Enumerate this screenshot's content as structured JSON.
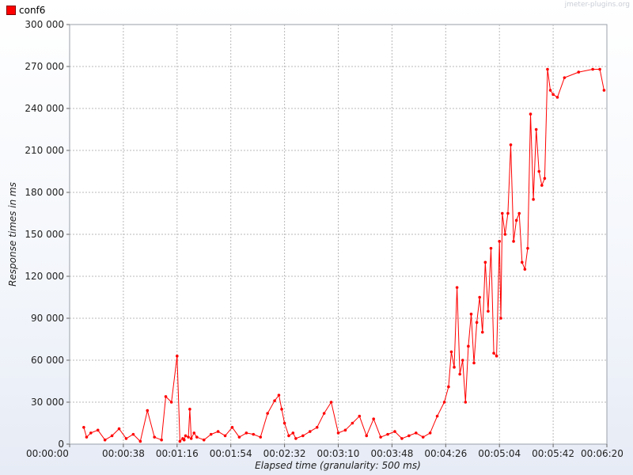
{
  "watermark": "jmeter-plugins.org",
  "chart_data": {
    "type": "line",
    "title": "",
    "xlabel": "Elapsed time (granularity: 500 ms)",
    "ylabel": "Response times in ms",
    "legend_position": "top-left",
    "grid": true,
    "x_ticks": [
      "00:00:00",
      "00:00:38",
      "00:01:16",
      "00:01:54",
      "00:02:32",
      "00:03:10",
      "00:03:48",
      "00:04:26",
      "00:05:04",
      "00:05:42",
      "00:06:20"
    ],
    "y_ticks": [
      "0",
      "30 000",
      "60 000",
      "90 000",
      "120 000",
      "150 000",
      "180 000",
      "210 000",
      "240 000",
      "270 000",
      "300 000"
    ],
    "xlim": [
      0,
      380
    ],
    "ylim": [
      0,
      300000
    ],
    "series": [
      {
        "name": "conf6",
        "color": "#ff0000",
        "x": [
          10,
          12,
          15,
          20,
          25,
          30,
          35,
          40,
          45,
          50,
          55,
          60,
          65,
          68,
          72,
          76,
          78,
          80,
          81,
          82,
          84,
          85,
          86,
          88,
          90,
          95,
          100,
          105,
          110,
          115,
          120,
          125,
          130,
          135,
          140,
          145,
          148,
          150,
          152,
          155,
          158,
          160,
          165,
          170,
          175,
          180,
          185,
          190,
          195,
          200,
          205,
          210,
          215,
          220,
          225,
          230,
          235,
          240,
          245,
          250,
          255,
          260,
          265,
          268,
          270,
          272,
          274,
          276,
          278,
          280,
          282,
          284,
          286,
          288,
          290,
          292,
          294,
          296,
          298,
          300,
          302,
          304,
          305,
          306,
          308,
          310,
          312,
          314,
          316,
          318,
          320,
          322,
          324,
          326,
          328,
          330,
          332,
          334,
          336,
          338,
          340,
          342,
          345,
          350,
          360,
          370,
          375,
          378
        ],
        "y": [
          12000,
          5000,
          8000,
          10000,
          3000,
          6000,
          11000,
          4000,
          7000,
          2000,
          24000,
          5000,
          3000,
          34000,
          30000,
          63000,
          2000,
          4000,
          3000,
          6000,
          5000,
          25000,
          4000,
          8000,
          5000,
          3000,
          7000,
          9000,
          6000,
          12000,
          5000,
          8000,
          7000,
          5000,
          22000,
          31000,
          35000,
          25000,
          15000,
          6000,
          8000,
          4000,
          6000,
          9000,
          12000,
          22000,
          30000,
          8000,
          10000,
          15000,
          20000,
          6000,
          18000,
          5000,
          7000,
          9000,
          4000,
          6000,
          8000,
          5000,
          8000,
          20000,
          30000,
          41000,
          66000,
          55000,
          112000,
          50000,
          60000,
          30000,
          70000,
          93000,
          58000,
          87000,
          105000,
          80000,
          130000,
          95000,
          140000,
          65000,
          63000,
          145000,
          90000,
          165000,
          150000,
          165000,
          214000,
          145000,
          160000,
          165000,
          130000,
          125000,
          140000,
          236000,
          175000,
          225000,
          195000,
          185000,
          190000,
          268000,
          253000,
          250000,
          248000,
          262000,
          266000,
          268000,
          268000,
          253000
        ]
      }
    ]
  }
}
